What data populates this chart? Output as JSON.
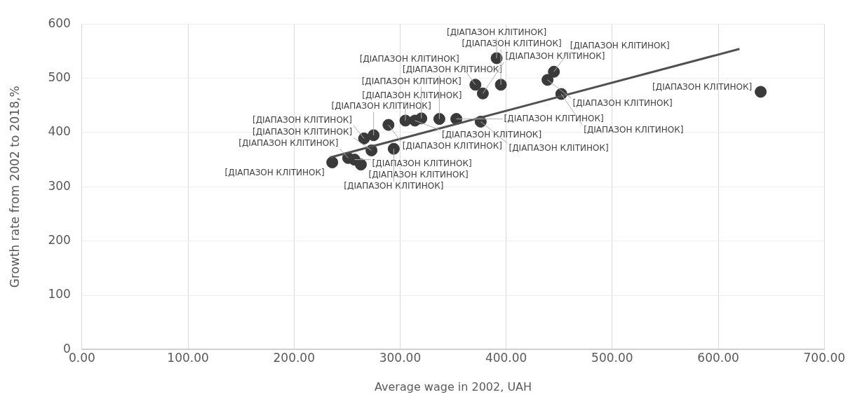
{
  "chart_data": {
    "type": "scatter",
    "xlabel": "Average wage in 2002, UAH",
    "ylabel": "Growth rate from 2002 to 2018,%",
    "xlim": [
      0,
      700
    ],
    "xticks": [
      {
        "value": 0,
        "label": "0.00"
      },
      {
        "value": 100,
        "label": "100.00"
      },
      {
        "value": 200,
        "label": "200.00"
      },
      {
        "value": 300,
        "label": "300.00"
      },
      {
        "value": 400,
        "label": "400.00"
      },
      {
        "value": 500,
        "label": "500.00"
      },
      {
        "value": 600,
        "label": "600.00"
      },
      {
        "value": 700,
        "label": "700.00"
      }
    ],
    "ylim": [
      0,
      600
    ],
    "yticks": [
      0,
      100,
      200,
      300,
      400,
      500,
      600
    ],
    "grid": true,
    "series": [
      {
        "marker": "circle",
        "color": "#3a3a3a",
        "x": [
          236,
          251,
          257,
          263,
          273,
          266,
          275,
          289,
          294,
          305,
          314,
          320,
          337,
          353,
          376,
          371,
          378,
          395,
          391,
          439,
          445,
          452,
          640
        ],
        "values": [
          345,
          353,
          350,
          341,
          367,
          389,
          395,
          414,
          370,
          422,
          422,
          426,
          425,
          425,
          420,
          488,
          472,
          488,
          537,
          497,
          512,
          471,
          475
        ],
        "value_labels": [
          "[ДІАПАЗОН КЛІТИНОК]",
          "[ДІАПАЗОН КЛІТИНОК]",
          "[ДІАПАЗОН КЛІТИНОК]",
          "[ДІАПАЗОН КЛІТИНОК]",
          "[ДІАПАЗОН КЛІТИНОК]",
          "[ДІАПАЗОН КЛІТИНОК]",
          "[ДІАПАЗОН КЛІТИНОК]",
          "[ДІАПАЗОН КЛІТИНОК]",
          "[ДІАПАЗОН КЛІТИНОК]",
          "[ДІАПАЗОН КЛІТИНОК]",
          "[ДІАПАЗОН КЛІТИНОК]",
          "[ДІАПАЗОН КЛІТИНОК]",
          "[ДІАПАЗОН КЛІТИНОК]",
          "[ДІАПАЗОН КЛІТИНОК]",
          "[ДІАПАЗОН КЛІТИНОК]",
          "[ДІАПАЗОН КЛІТИНОК]",
          "[ДІАПАЗОН КЛІТИНОК]",
          "[ДІАПАЗОН КЛІТИНОК]",
          "[ДІАПАЗОН КЛІТИНОК]",
          "[ДІАПАЗОН КЛІТИНОК]",
          "[ДІАПАЗОН КЛІТИНОК]",
          "[ДІАПАЗОН КЛІТИНОК]",
          "[ДІАПАЗОН КЛІТИНОК]"
        ]
      },
      {
        "type": "line",
        "color": "#505050",
        "x": [
          234,
          620
        ],
        "values": [
          354,
          554
        ]
      }
    ]
  }
}
